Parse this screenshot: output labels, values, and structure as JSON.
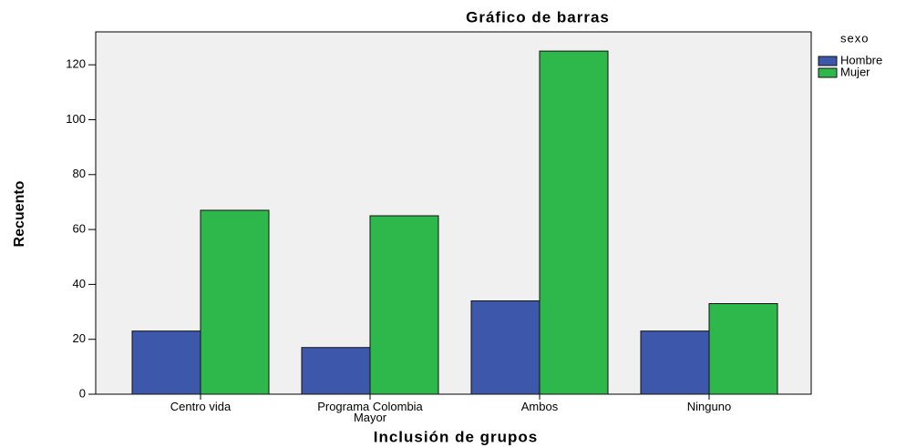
{
  "chart_data": {
    "type": "bar",
    "title": "Gráfico de barras",
    "x_label": "Inclusión de grupos",
    "y_label": "Recuento",
    "legend_title": "sexo",
    "categories": [
      "Centro vida",
      "Programa Colombia Mayor",
      "Ambos",
      "Ninguno"
    ],
    "series": [
      {
        "name": "Hombre",
        "color": "#3d58ab",
        "values": [
          23,
          17,
          34,
          23
        ]
      },
      {
        "name": "Mujer",
        "color": "#2eb84b",
        "values": [
          67,
          65,
          125,
          33
        ]
      }
    ],
    "ylim": [
      0,
      132
    ],
    "yticks": [
      0,
      20,
      40,
      60,
      80,
      100,
      120
    ],
    "legend_position": "right"
  }
}
